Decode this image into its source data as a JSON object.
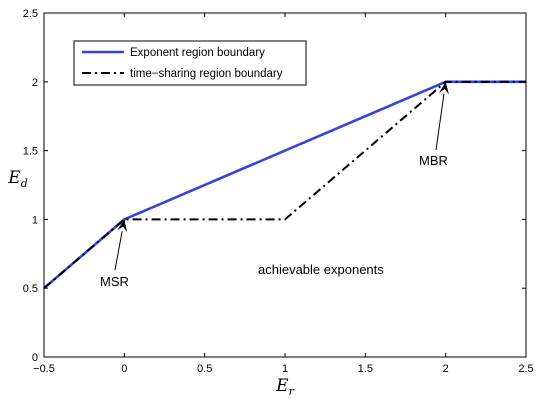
{
  "chart_data": {
    "type": "line",
    "xlim": [
      -0.5,
      2.5
    ],
    "ylim": [
      0,
      2.5
    ],
    "xticks": [
      -0.5,
      0,
      0.5,
      1,
      1.5,
      2,
      2.5
    ],
    "yticks": [
      0,
      0.5,
      1,
      1.5,
      2,
      2.5
    ],
    "xtick_labels": [
      "−0.5",
      "0",
      "0.5",
      "1",
      "1.5",
      "2",
      "2.5"
    ],
    "ytick_labels": [
      "0",
      "0.5",
      "1",
      "1.5",
      "2",
      "2.5"
    ],
    "xlabel": {
      "base": "E",
      "sub": "r"
    },
    "ylabel": {
      "base": "E",
      "sub": "d"
    },
    "grid": false,
    "legend_position": "top-left",
    "series": [
      {
        "name": "Exponent region boundary",
        "color": "#3344dd",
        "style": "solid",
        "x": [
          -0.5,
          0,
          2,
          2.5
        ],
        "y": [
          0.5,
          1,
          2,
          2
        ]
      },
      {
        "name": "time−sharing region boundary",
        "color": "#000000",
        "style": "dash-dot",
        "x": [
          -0.5,
          0,
          1,
          2,
          2.5
        ],
        "y": [
          0.5,
          1,
          1,
          2,
          2
        ]
      }
    ],
    "annotations": [
      {
        "text": "MSR",
        "target": [
          0,
          1
        ]
      },
      {
        "text": "MBR",
        "target": [
          2,
          2
        ]
      },
      {
        "text": "achievable exponents"
      }
    ]
  }
}
